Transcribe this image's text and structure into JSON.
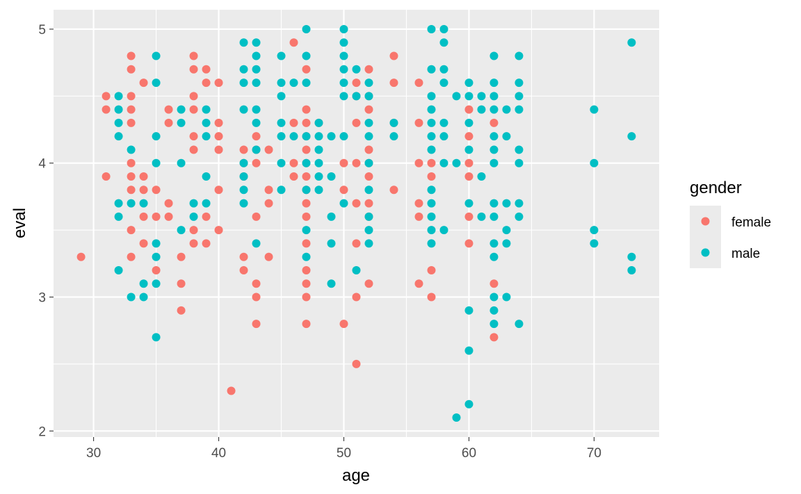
{
  "chart_data": {
    "type": "scatter",
    "title": "",
    "xlabel": "age",
    "ylabel": "eval",
    "xlim": [
      26.8,
      75.2
    ],
    "ylim": [
      1.955,
      5.145
    ],
    "x_ticks": [
      30,
      40,
      50,
      60,
      70
    ],
    "x_tick_labels": [
      "30",
      "40",
      "50",
      "60",
      "70"
    ],
    "y_ticks": [
      2,
      3,
      4,
      5
    ],
    "y_tick_labels": [
      "2",
      "3",
      "4",
      "5"
    ],
    "grid": true,
    "legend": {
      "title": "gender",
      "position": "right"
    },
    "series": [
      {
        "name": "female",
        "color": "#F8766D",
        "points": [
          [
            29,
            3.3
          ],
          [
            31,
            4.5
          ],
          [
            31,
            4.4
          ],
          [
            31,
            3.9
          ],
          [
            33,
            4.8
          ],
          [
            33,
            4.7
          ],
          [
            33,
            4.5
          ],
          [
            33,
            4.4
          ],
          [
            33,
            4.3
          ],
          [
            33,
            4.0
          ],
          [
            33,
            3.9
          ],
          [
            33,
            3.8
          ],
          [
            33,
            3.5
          ],
          [
            33,
            3.3
          ],
          [
            34,
            4.6
          ],
          [
            34,
            3.9
          ],
          [
            34,
            3.8
          ],
          [
            34,
            3.6
          ],
          [
            34,
            3.4
          ],
          [
            35,
            3.8
          ],
          [
            35,
            3.6
          ],
          [
            35,
            3.2
          ],
          [
            36,
            4.4
          ],
          [
            36,
            4.3
          ],
          [
            36,
            3.7
          ],
          [
            36,
            3.6
          ],
          [
            37,
            3.3
          ],
          [
            37,
            3.1
          ],
          [
            37,
            2.9
          ],
          [
            38,
            4.8
          ],
          [
            38,
            4.7
          ],
          [
            38,
            4.5
          ],
          [
            38,
            4.4
          ],
          [
            38,
            4.2
          ],
          [
            38,
            4.1
          ],
          [
            38,
            3.5
          ],
          [
            38,
            3.4
          ],
          [
            39,
            4.7
          ],
          [
            39,
            4.6
          ],
          [
            39,
            3.6
          ],
          [
            39,
            3.4
          ],
          [
            40,
            4.6
          ],
          [
            40,
            4.3
          ],
          [
            40,
            4.2
          ],
          [
            40,
            4.1
          ],
          [
            40,
            3.8
          ],
          [
            40,
            3.5
          ],
          [
            41,
            2.3
          ],
          [
            42,
            4.1
          ],
          [
            42,
            4.0
          ],
          [
            42,
            3.9
          ],
          [
            42,
            3.3
          ],
          [
            42,
            3.2
          ],
          [
            43,
            4.2
          ],
          [
            43,
            4.1
          ],
          [
            43,
            4.0
          ],
          [
            43,
            3.6
          ],
          [
            43,
            3.1
          ],
          [
            43,
            3.0
          ],
          [
            43,
            2.8
          ],
          [
            44,
            4.1
          ],
          [
            44,
            3.8
          ],
          [
            44,
            3.7
          ],
          [
            44,
            3.3
          ],
          [
            46,
            4.9
          ],
          [
            46,
            4.3
          ],
          [
            46,
            4.0
          ],
          [
            46,
            3.9
          ],
          [
            47,
            4.7
          ],
          [
            47,
            4.4
          ],
          [
            47,
            4.3
          ],
          [
            47,
            4.2
          ],
          [
            47,
            4.1
          ],
          [
            47,
            4.0
          ],
          [
            47,
            3.9
          ],
          [
            47,
            3.8
          ],
          [
            47,
            3.7
          ],
          [
            47,
            3.6
          ],
          [
            47,
            3.4
          ],
          [
            47,
            3.2
          ],
          [
            47,
            3.1
          ],
          [
            47,
            3.0
          ],
          [
            47,
            2.8
          ],
          [
            48,
            4.3
          ],
          [
            50,
            4.0
          ],
          [
            50,
            3.8
          ],
          [
            50,
            2.8
          ],
          [
            51,
            4.6
          ],
          [
            51,
            4.5
          ],
          [
            51,
            4.3
          ],
          [
            51,
            4.0
          ],
          [
            51,
            3.7
          ],
          [
            51,
            3.4
          ],
          [
            51,
            3.0
          ],
          [
            51,
            2.5
          ],
          [
            52,
            4.7
          ],
          [
            52,
            4.5
          ],
          [
            52,
            4.4
          ],
          [
            52,
            4.1
          ],
          [
            52,
            4.0
          ],
          [
            52,
            3.9
          ],
          [
            52,
            3.7
          ],
          [
            52,
            3.6
          ],
          [
            52,
            3.1
          ],
          [
            54,
            4.8
          ],
          [
            54,
            4.6
          ],
          [
            54,
            4.3
          ],
          [
            54,
            3.8
          ],
          [
            56,
            4.6
          ],
          [
            56,
            4.3
          ],
          [
            56,
            4.0
          ],
          [
            56,
            3.7
          ],
          [
            56,
            3.6
          ],
          [
            56,
            3.1
          ],
          [
            57,
            4.0
          ],
          [
            57,
            3.9
          ],
          [
            57,
            3.2
          ],
          [
            57,
            3.0
          ],
          [
            60,
            4.4
          ],
          [
            60,
            4.2
          ],
          [
            60,
            4.0
          ],
          [
            60,
            3.9
          ],
          [
            60,
            3.6
          ],
          [
            60,
            3.4
          ],
          [
            62,
            4.3
          ],
          [
            62,
            3.1
          ],
          [
            62,
            2.7
          ]
        ]
      },
      {
        "name": "male",
        "color": "#00BFC4",
        "points": [
          [
            32,
            4.5
          ],
          [
            32,
            4.4
          ],
          [
            32,
            4.3
          ],
          [
            32,
            4.2
          ],
          [
            32,
            3.7
          ],
          [
            32,
            3.6
          ],
          [
            32,
            3.2
          ],
          [
            33,
            4.1
          ],
          [
            33,
            3.7
          ],
          [
            33,
            3.0
          ],
          [
            34,
            3.7
          ],
          [
            34,
            3.1
          ],
          [
            34,
            3.0
          ],
          [
            35,
            4.8
          ],
          [
            35,
            4.6
          ],
          [
            35,
            4.2
          ],
          [
            35,
            4.0
          ],
          [
            35,
            3.4
          ],
          [
            35,
            3.3
          ],
          [
            35,
            3.1
          ],
          [
            35,
            2.7
          ],
          [
            37,
            4.4
          ],
          [
            37,
            4.3
          ],
          [
            37,
            4.0
          ],
          [
            37,
            3.5
          ],
          [
            38,
            3.7
          ],
          [
            38,
            3.6
          ],
          [
            39,
            4.4
          ],
          [
            39,
            4.3
          ],
          [
            39,
            4.2
          ],
          [
            39,
            3.9
          ],
          [
            39,
            3.7
          ],
          [
            42,
            4.9
          ],
          [
            42,
            4.7
          ],
          [
            42,
            4.6
          ],
          [
            42,
            4.4
          ],
          [
            42,
            4.0
          ],
          [
            42,
            3.9
          ],
          [
            42,
            3.8
          ],
          [
            42,
            3.7
          ],
          [
            43,
            4.9
          ],
          [
            43,
            4.8
          ],
          [
            43,
            4.7
          ],
          [
            43,
            4.6
          ],
          [
            43,
            4.4
          ],
          [
            43,
            4.3
          ],
          [
            43,
            4.1
          ],
          [
            43,
            3.4
          ],
          [
            45,
            4.8
          ],
          [
            45,
            4.6
          ],
          [
            45,
            4.5
          ],
          [
            45,
            4.3
          ],
          [
            45,
            4.2
          ],
          [
            45,
            4.0
          ],
          [
            45,
            3.8
          ],
          [
            46,
            4.6
          ],
          [
            46,
            4.2
          ],
          [
            47,
            5.0
          ],
          [
            47,
            4.8
          ],
          [
            47,
            4.6
          ],
          [
            47,
            4.2
          ],
          [
            47,
            4.0
          ],
          [
            47,
            3.8
          ],
          [
            47,
            3.5
          ],
          [
            47,
            3.3
          ],
          [
            48,
            4.3
          ],
          [
            48,
            4.2
          ],
          [
            48,
            4.1
          ],
          [
            48,
            4.0
          ],
          [
            48,
            3.9
          ],
          [
            48,
            3.8
          ],
          [
            49,
            4.2
          ],
          [
            49,
            3.9
          ],
          [
            49,
            3.6
          ],
          [
            49,
            3.4
          ],
          [
            49,
            3.1
          ],
          [
            50,
            5.0
          ],
          [
            50,
            4.9
          ],
          [
            50,
            4.8
          ],
          [
            50,
            4.7
          ],
          [
            50,
            4.6
          ],
          [
            50,
            4.5
          ],
          [
            50,
            4.2
          ],
          [
            50,
            3.7
          ],
          [
            51,
            4.7
          ],
          [
            51,
            4.5
          ],
          [
            51,
            3.2
          ],
          [
            52,
            4.6
          ],
          [
            52,
            4.5
          ],
          [
            52,
            4.3
          ],
          [
            52,
            4.2
          ],
          [
            52,
            4.0
          ],
          [
            52,
            3.8
          ],
          [
            52,
            3.6
          ],
          [
            52,
            3.5
          ],
          [
            52,
            3.4
          ],
          [
            54,
            4.3
          ],
          [
            54,
            4.2
          ],
          [
            57,
            5.0
          ],
          [
            57,
            4.7
          ],
          [
            57,
            4.5
          ],
          [
            57,
            4.4
          ],
          [
            57,
            4.3
          ],
          [
            57,
            4.2
          ],
          [
            57,
            4.1
          ],
          [
            57,
            3.8
          ],
          [
            57,
            3.7
          ],
          [
            57,
            3.6
          ],
          [
            57,
            3.5
          ],
          [
            57,
            3.4
          ],
          [
            58,
            5.0
          ],
          [
            58,
            4.9
          ],
          [
            58,
            4.7
          ],
          [
            58,
            4.6
          ],
          [
            58,
            4.3
          ],
          [
            58,
            4.2
          ],
          [
            58,
            4.0
          ],
          [
            58,
            3.5
          ],
          [
            59,
            4.5
          ],
          [
            59,
            4.0
          ],
          [
            59,
            2.1
          ],
          [
            60,
            4.6
          ],
          [
            60,
            4.5
          ],
          [
            60,
            4.3
          ],
          [
            60,
            4.1
          ],
          [
            60,
            3.7
          ],
          [
            60,
            2.9
          ],
          [
            60,
            2.6
          ],
          [
            60,
            2.2
          ],
          [
            61,
            4.5
          ],
          [
            61,
            4.4
          ],
          [
            61,
            3.9
          ],
          [
            61,
            3.6
          ],
          [
            62,
            4.8
          ],
          [
            62,
            4.6
          ],
          [
            62,
            4.5
          ],
          [
            62,
            4.4
          ],
          [
            62,
            4.2
          ],
          [
            62,
            4.1
          ],
          [
            62,
            4.0
          ],
          [
            62,
            3.7
          ],
          [
            62,
            3.6
          ],
          [
            62,
            3.4
          ],
          [
            62,
            3.3
          ],
          [
            62,
            3.0
          ],
          [
            62,
            2.9
          ],
          [
            62,
            2.8
          ],
          [
            63,
            4.4
          ],
          [
            63,
            4.2
          ],
          [
            63,
            3.7
          ],
          [
            63,
            3.5
          ],
          [
            63,
            3.4
          ],
          [
            63,
            3.0
          ],
          [
            64,
            4.8
          ],
          [
            64,
            4.6
          ],
          [
            64,
            4.5
          ],
          [
            64,
            4.4
          ],
          [
            64,
            4.1
          ],
          [
            64,
            4.0
          ],
          [
            64,
            3.7
          ],
          [
            64,
            3.6
          ],
          [
            64,
            2.8
          ],
          [
            70,
            4.4
          ],
          [
            70,
            4.0
          ],
          [
            70,
            3.5
          ],
          [
            70,
            3.4
          ],
          [
            73,
            4.9
          ],
          [
            73,
            4.2
          ],
          [
            73,
            3.3
          ],
          [
            73,
            3.2
          ]
        ]
      }
    ]
  }
}
